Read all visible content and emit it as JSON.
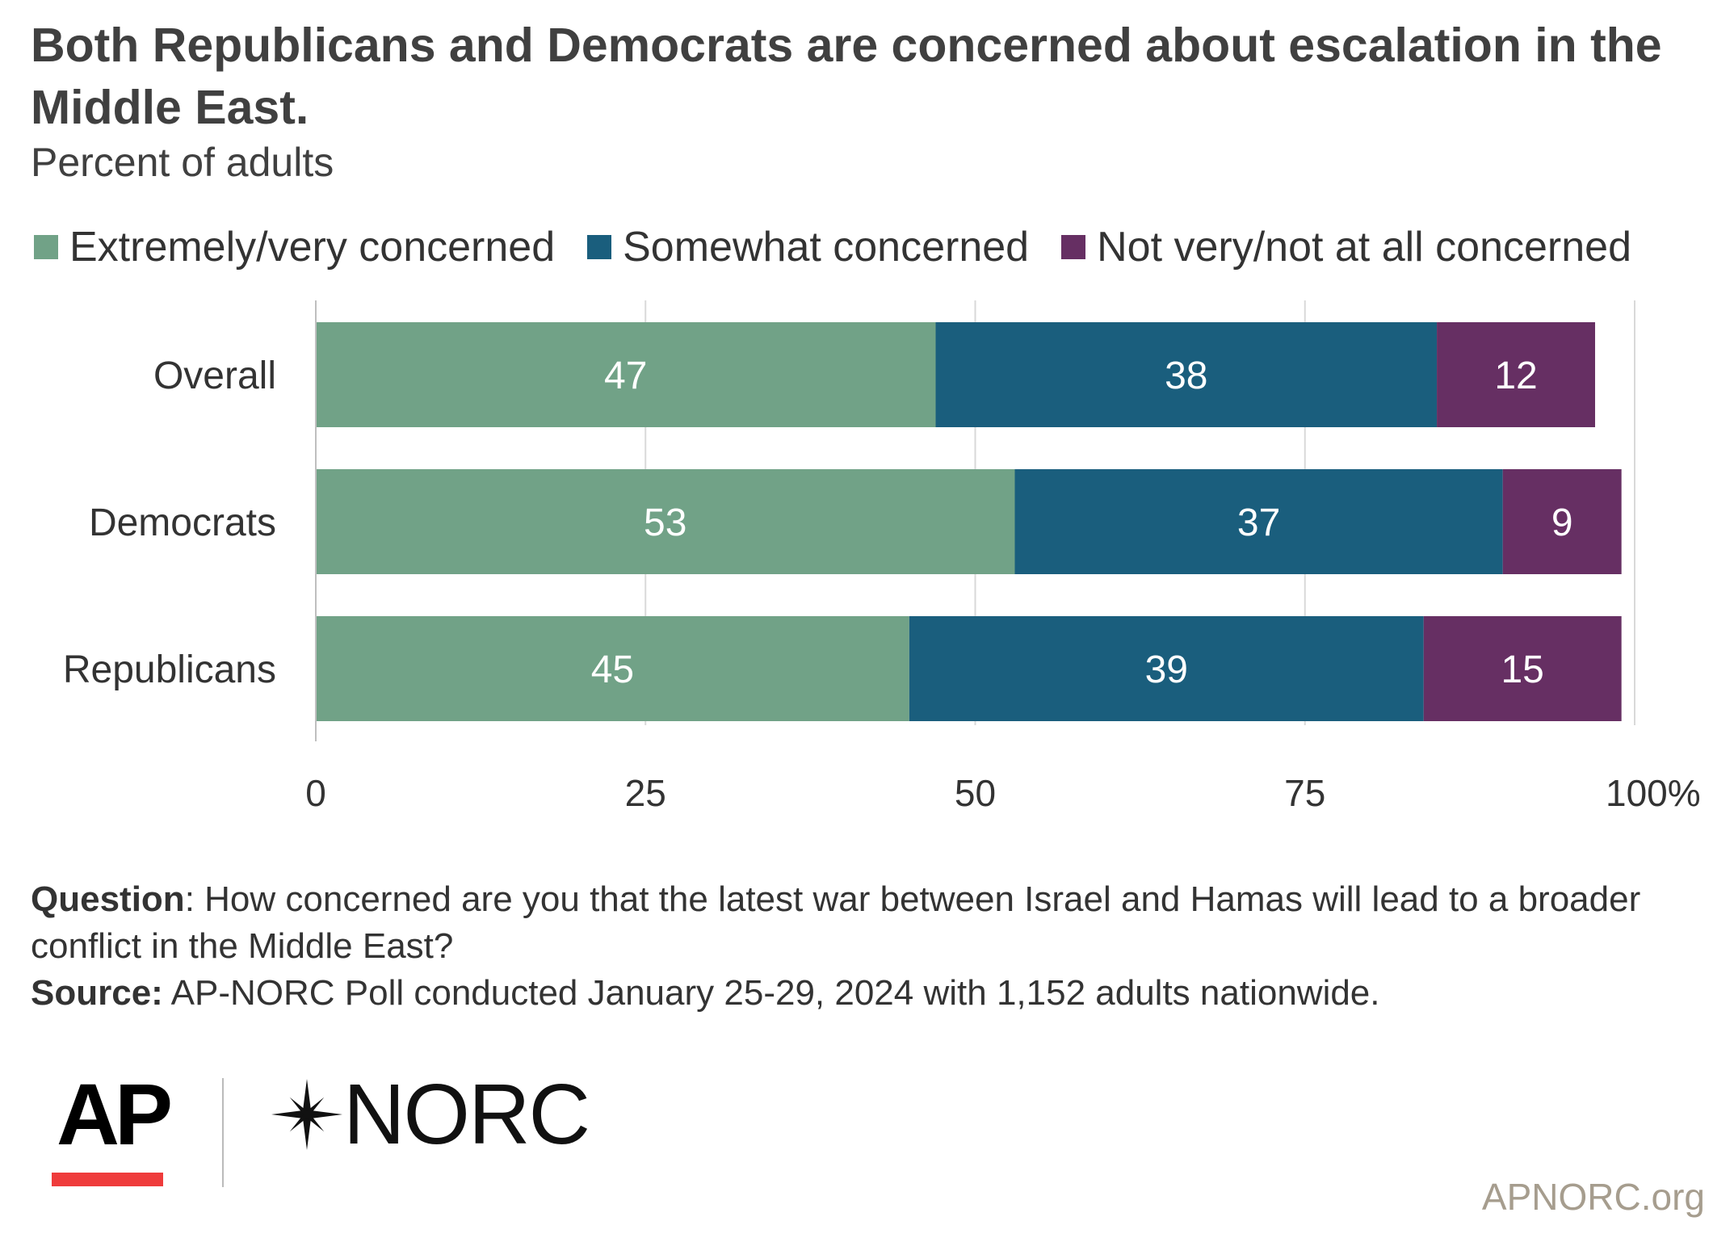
{
  "title": "Both Republicans and Democrats are concerned about escalation in the Middle East.",
  "subtitle": "Percent of adults",
  "colors": {
    "extremely_very": "#71a287",
    "somewhat": "#1a5e7d",
    "not_very": "#662f63"
  },
  "legend": [
    {
      "label": "Extremely/very concerned",
      "color": "#71a287"
    },
    {
      "label": "Somewhat concerned",
      "color": "#1a5e7d"
    },
    {
      "label": "Not very/not at all concerned",
      "color": "#662f63"
    }
  ],
  "chart_data": {
    "type": "bar",
    "orientation": "horizontal",
    "stacked": true,
    "categories": [
      "Overall",
      "Democrats",
      "Republicans"
    ],
    "series": [
      {
        "name": "Extremely/very concerned",
        "values": [
          47,
          53,
          45
        ],
        "color": "#71a287"
      },
      {
        "name": "Somewhat concerned",
        "values": [
          38,
          37,
          39
        ],
        "color": "#1a5e7d"
      },
      {
        "name": "Not very/not at all concerned",
        "values": [
          12,
          9,
          15
        ],
        "color": "#662f63"
      }
    ],
    "xlim": [
      0,
      100
    ],
    "xticks": [
      0,
      25,
      50,
      75,
      100
    ],
    "xtick_labels": [
      "0",
      "25",
      "50",
      "75",
      "100%"
    ],
    "grid": true,
    "legend_position": "top"
  },
  "footnote": {
    "question_label": "Question",
    "question_text": ": How concerned are you that the latest war between Israel and Hamas will lead to a broader conflict in the Middle East?",
    "source_label": "Source:",
    "source_text": " AP-NORC Poll conducted January 25-29, 2024 with 1,152 adults nationwide."
  },
  "logos": {
    "ap": "AP",
    "norc": "NORC",
    "ap_color": "#ef3b3b"
  },
  "site": "APNORC.org"
}
